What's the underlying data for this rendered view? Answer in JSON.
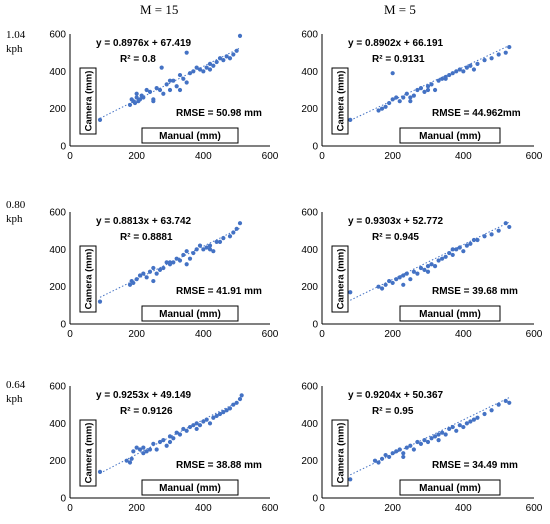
{
  "column_headers": [
    "M = 15",
    "M = 5"
  ],
  "row_headers": [
    {
      "line1": "1.04",
      "line2": "kph"
    },
    {
      "line1": "0.80",
      "line2": "kph"
    },
    {
      "line1": "0.64",
      "line2": "kph"
    }
  ],
  "colors": {
    "point": "#4472c4",
    "trend": "#4472c4",
    "axis": "#000000"
  },
  "chart_data": [
    {
      "type": "scatter",
      "id": "p-104-m15",
      "equation": "y = 0.8976x + 67.419",
      "r2": "R² = 0.8",
      "rmse": "RMSE = 50.98 mm",
      "xlabel": "Manual (mm)",
      "ylabel": "Camera (mm)",
      "xlim": [
        0,
        600
      ],
      "ylim": [
        0,
        600
      ],
      "xticks": [
        "0",
        "200",
        "400",
        "600"
      ],
      "yticks": [
        "0",
        "200",
        "400",
        "600"
      ],
      "trend": {
        "slope": 0.8976,
        "intercept": 67.419,
        "x_range": [
          90,
          510
        ]
      },
      "x": [
        90,
        180,
        185,
        190,
        195,
        200,
        205,
        210,
        215,
        220,
        230,
        240,
        250,
        260,
        270,
        280,
        290,
        300,
        310,
        320,
        330,
        340,
        350,
        360,
        370,
        380,
        390,
        400,
        410,
        420,
        430,
        440,
        450,
        460,
        470,
        480,
        490,
        500,
        510,
        275,
        330,
        250,
        350,
        200,
        300,
        420
      ],
      "y": [
        140,
        220,
        250,
        240,
        230,
        260,
        240,
        250,
        270,
        260,
        300,
        290,
        250,
        310,
        300,
        280,
        330,
        300,
        350,
        320,
        380,
        360,
        340,
        390,
        400,
        420,
        410,
        400,
        420,
        410,
        430,
        450,
        470,
        460,
        480,
        470,
        490,
        510,
        590,
        420,
        300,
        240,
        500,
        280,
        350,
        440
      ]
    },
    {
      "type": "scatter",
      "id": "p-104-m5",
      "equation": "y = 0.8902x + 66.191",
      "r2": "R² = 0.9131",
      "rmse": "RMSE = 44.962mm",
      "xlabel": "Manual (mm)",
      "ylabel": "Camera (mm)",
      "xlim": [
        0,
        600
      ],
      "ylim": [
        0,
        600
      ],
      "xticks": [
        "0",
        "200",
        "400",
        "600"
      ],
      "yticks": [
        "0",
        "200",
        "400",
        "600"
      ],
      "trend": {
        "slope": 0.8902,
        "intercept": 66.191,
        "x_range": [
          80,
          530
        ]
      },
      "x": [
        80,
        160,
        170,
        180,
        190,
        200,
        210,
        220,
        230,
        240,
        250,
        260,
        270,
        280,
        290,
        300,
        310,
        320,
        330,
        340,
        350,
        360,
        370,
        380,
        390,
        400,
        410,
        420,
        430,
        440,
        460,
        480,
        500,
        520,
        530,
        200,
        250,
        300,
        350
      ],
      "y": [
        140,
        190,
        200,
        210,
        230,
        250,
        260,
        240,
        260,
        280,
        260,
        270,
        300,
        310,
        290,
        320,
        330,
        300,
        350,
        360,
        370,
        380,
        390,
        400,
        410,
        400,
        420,
        430,
        410,
        440,
        460,
        470,
        490,
        500,
        530,
        390,
        240,
        300,
        360
      ]
    },
    {
      "type": "scatter",
      "id": "p-080-m15",
      "equation": "y = 0.8813x + 63.742",
      "r2": "R² = 0.8881",
      "rmse": "RMSE = 41.91 mm",
      "xlabel": "Manual (mm)",
      "ylabel": "Camera (mm)",
      "xlim": [
        0,
        600
      ],
      "ylim": [
        0,
        600
      ],
      "xticks": [
        "0",
        "200",
        "400",
        "600"
      ],
      "yticks": [
        "0",
        "200",
        "400",
        "600"
      ],
      "trend": {
        "slope": 0.8813,
        "intercept": 63.742,
        "x_range": [
          90,
          510
        ]
      },
      "x": [
        90,
        180,
        185,
        190,
        200,
        210,
        220,
        230,
        240,
        250,
        260,
        270,
        280,
        290,
        300,
        310,
        320,
        330,
        340,
        350,
        360,
        370,
        380,
        390,
        400,
        410,
        420,
        430,
        440,
        450,
        460,
        480,
        490,
        500,
        510,
        250,
        300,
        350,
        420
      ],
      "y": [
        120,
        210,
        230,
        220,
        240,
        260,
        270,
        250,
        280,
        300,
        270,
        290,
        300,
        330,
        320,
        330,
        350,
        340,
        370,
        390,
        350,
        380,
        400,
        420,
        400,
        410,
        420,
        390,
        440,
        440,
        460,
        470,
        490,
        510,
        540,
        230,
        330,
        320,
        400
      ]
    },
    {
      "type": "scatter",
      "id": "p-080-m5",
      "equation": "y = 0.9303x + 52.772",
      "r2": "R² = 0.945",
      "rmse": "RMSE = 39.68 mm",
      "xlabel": "Manual (mm)",
      "ylabel": "Camera (mm)",
      "xlim": [
        0,
        600
      ],
      "ylim": [
        0,
        600
      ],
      "xticks": [
        "0",
        "200",
        "400",
        "600"
      ],
      "yticks": [
        "0",
        "200",
        "400",
        "600"
      ],
      "trend": {
        "slope": 0.9303,
        "intercept": 52.772,
        "x_range": [
          80,
          530
        ]
      },
      "x": [
        80,
        160,
        170,
        180,
        190,
        200,
        210,
        220,
        230,
        240,
        250,
        260,
        270,
        280,
        290,
        300,
        310,
        320,
        330,
        340,
        350,
        360,
        370,
        380,
        390,
        400,
        410,
        420,
        440,
        460,
        480,
        500,
        520,
        530,
        230,
        300,
        370,
        430
      ],
      "y": [
        170,
        200,
        190,
        210,
        230,
        220,
        240,
        250,
        260,
        270,
        240,
        280,
        270,
        300,
        290,
        310,
        320,
        310,
        340,
        350,
        360,
        380,
        370,
        400,
        410,
        390,
        420,
        430,
        450,
        470,
        480,
        500,
        540,
        520,
        210,
        280,
        400,
        450
      ]
    },
    {
      "type": "scatter",
      "id": "p-064-m15",
      "equation": "y = 0.9253x + 49.149",
      "r2": "R² = 0.9126",
      "rmse": "RMSE = 38.88 mm",
      "xlabel": "Manual (mm)",
      "ylabel": "Camera (mm)",
      "xlim": [
        0,
        600
      ],
      "ylim": [
        0,
        600
      ],
      "xticks": [
        "0",
        "200",
        "400",
        "600"
      ],
      "yticks": [
        "0",
        "200",
        "400",
        "600"
      ],
      "trend": {
        "slope": 0.9253,
        "intercept": 49.149,
        "x_range": [
          90,
          515
        ]
      },
      "x": [
        90,
        170,
        180,
        185,
        190,
        200,
        210,
        220,
        230,
        240,
        250,
        260,
        270,
        280,
        290,
        300,
        310,
        320,
        330,
        340,
        350,
        360,
        370,
        380,
        390,
        400,
        410,
        420,
        430,
        440,
        450,
        460,
        470,
        480,
        490,
        500,
        510,
        515,
        220,
        300,
        380
      ],
      "y": [
        140,
        200,
        190,
        210,
        250,
        270,
        260,
        240,
        250,
        260,
        290,
        260,
        300,
        310,
        280,
        330,
        320,
        350,
        340,
        370,
        360,
        380,
        390,
        400,
        390,
        410,
        420,
        400,
        430,
        440,
        450,
        460,
        470,
        480,
        500,
        510,
        530,
        550,
        270,
        300,
        370
      ]
    },
    {
      "type": "scatter",
      "id": "p-064-m5",
      "equation": "y = 0.9204x + 50.367",
      "r2": "R² = 0.95",
      "rmse": "RMSE = 34.49 mm",
      "xlabel": "Manual (mm)",
      "ylabel": "Camera (mm)",
      "xlim": [
        0,
        600
      ],
      "ylim": [
        0,
        600
      ],
      "xticks": [
        "0",
        "200",
        "400",
        "600"
      ],
      "yticks": [
        "0",
        "200",
        "400",
        "600"
      ],
      "trend": {
        "slope": 0.9204,
        "intercept": 50.367,
        "x_range": [
          80,
          530
        ]
      },
      "x": [
        80,
        150,
        160,
        170,
        180,
        190,
        200,
        210,
        220,
        230,
        240,
        250,
        260,
        270,
        280,
        290,
        300,
        310,
        320,
        330,
        340,
        350,
        360,
        370,
        380,
        390,
        400,
        410,
        420,
        430,
        440,
        460,
        480,
        500,
        520,
        530,
        230,
        330
      ],
      "y": [
        100,
        200,
        190,
        210,
        230,
        220,
        240,
        250,
        260,
        240,
        270,
        280,
        260,
        300,
        290,
        310,
        300,
        320,
        330,
        340,
        350,
        340,
        370,
        380,
        360,
        390,
        380,
        400,
        410,
        420,
        430,
        450,
        470,
        500,
        520,
        510,
        220,
        310
      ]
    }
  ]
}
